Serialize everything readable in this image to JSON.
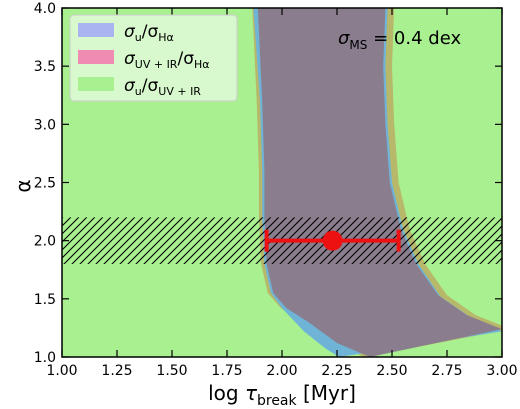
{
  "chart_data": {
    "type": "area",
    "title": "",
    "xlabel": {
      "main": "log",
      "tau": "τ",
      "sub": "break",
      "unit": "[Myr]"
    },
    "ylabel": "α",
    "xlim": [
      1.0,
      3.0
    ],
    "ylim": [
      1.0,
      4.0
    ],
    "x_ticks": [
      1.0,
      1.25,
      1.5,
      1.75,
      2.0,
      2.25,
      2.5,
      2.75,
      3.0
    ],
    "x_tick_labels": [
      "1.00",
      "1.25",
      "1.50",
      "1.75",
      "2.00",
      "2.25",
      "2.50",
      "2.75",
      "3.00"
    ],
    "y_ticks": [
      1.0,
      1.5,
      2.0,
      2.5,
      3.0,
      3.5,
      4.0
    ],
    "y_tick_labels": [
      "1.0",
      "1.5",
      "2.0",
      "2.5",
      "3.0",
      "3.5",
      "4.0"
    ],
    "grid": false,
    "legend_position": "top-left",
    "annotation": {
      "sigma": "σ",
      "sub": "MS",
      "rest": " = 0.4 dex"
    },
    "series": [
      {
        "name": {
          "a": "σ",
          "a_sub": "u",
          "b": "/σ",
          "b_sub": "Hα"
        },
        "color": "#aab4f0",
        "lower": [
          [
            1.87,
            4.0
          ],
          [
            1.9,
            3.2
          ],
          [
            1.91,
            2.6
          ],
          [
            1.91,
            2.2
          ],
          [
            1.92,
            1.8
          ],
          [
            1.95,
            1.55
          ],
          [
            2.0,
            1.42
          ],
          [
            2.1,
            1.22
          ],
          [
            2.2,
            1.07
          ],
          [
            2.26,
            1.0
          ]
        ],
        "upper": [
          [
            2.48,
            4.0
          ],
          [
            2.47,
            3.5
          ],
          [
            2.48,
            3.0
          ],
          [
            2.5,
            2.5
          ],
          [
            2.55,
            2.1
          ],
          [
            2.62,
            1.8
          ],
          [
            2.72,
            1.52
          ],
          [
            2.85,
            1.35
          ],
          [
            3.0,
            1.22
          ]
        ]
      },
      {
        "name": {
          "a": "σ",
          "a_sub": "UV + IR",
          "b": "/σ",
          "b_sub": "Hα"
        },
        "color": "#f08cb4",
        "lower": [
          [
            1.89,
            4.0
          ],
          [
            1.91,
            3.2
          ],
          [
            1.92,
            2.6
          ],
          [
            1.92,
            2.2
          ],
          [
            1.93,
            1.8
          ],
          [
            1.96,
            1.55
          ],
          [
            2.02,
            1.42
          ],
          [
            2.12,
            1.25
          ],
          [
            2.26,
            1.04
          ],
          [
            2.3,
            1.0
          ]
        ],
        "upper": [
          [
            2.47,
            4.0
          ],
          [
            2.46,
            3.5
          ],
          [
            2.47,
            3.0
          ],
          [
            2.49,
            2.5
          ],
          [
            2.54,
            2.1
          ],
          [
            2.61,
            1.8
          ],
          [
            2.71,
            1.53
          ],
          [
            2.84,
            1.36
          ],
          [
            3.0,
            1.24
          ]
        ]
      },
      {
        "name": {
          "a": "σ",
          "a_sub": "u",
          "b": "/σ",
          "b_sub": "UV + IR"
        },
        "color": "#a8f090",
        "lower": [
          [
            1.89,
            4.0
          ],
          [
            1.91,
            3.2
          ],
          [
            1.92,
            2.6
          ],
          [
            1.92,
            2.2
          ],
          [
            1.93,
            1.8
          ],
          [
            1.96,
            1.55
          ],
          [
            2.02,
            1.42
          ],
          [
            2.12,
            1.3
          ],
          [
            2.25,
            1.12
          ],
          [
            2.4,
            1.0
          ]
        ],
        "upper": [
          [
            2.47,
            4.0
          ],
          [
            2.46,
            3.5
          ],
          [
            2.47,
            3.0
          ],
          [
            2.49,
            2.5
          ],
          [
            2.54,
            2.1
          ],
          [
            2.61,
            1.8
          ],
          [
            2.71,
            1.53
          ],
          [
            2.84,
            1.36
          ],
          [
            3.0,
            1.24
          ]
        ]
      }
    ],
    "hatched_band": {
      "y_min": 1.8,
      "y_max": 2.2
    },
    "point": {
      "x": 2.23,
      "y": 2.0,
      "xerr_low": 1.93,
      "xerr_high": 2.53,
      "color": "#ee1111"
    }
  }
}
